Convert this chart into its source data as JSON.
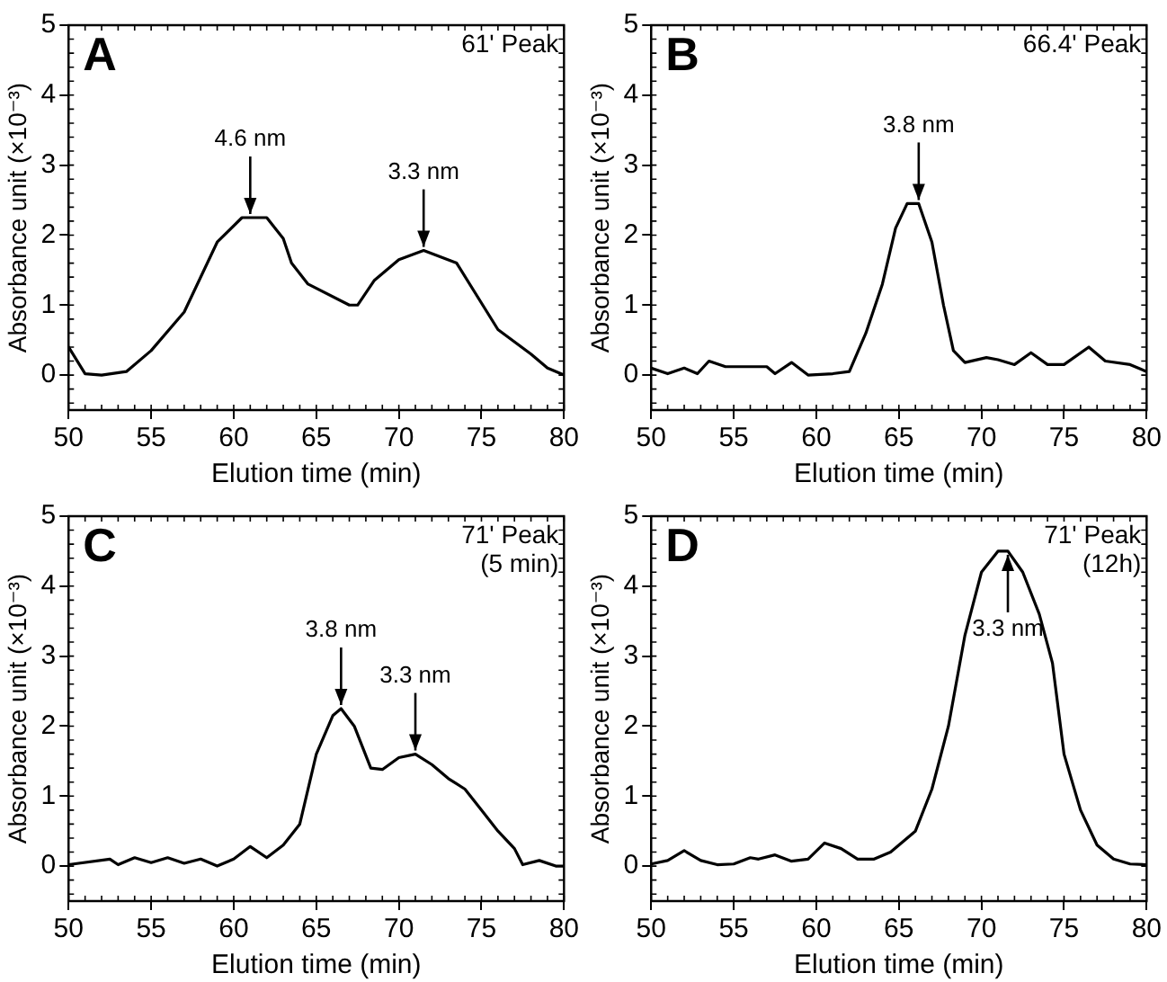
{
  "chart_data": [
    {
      "type": "line",
      "title": "A",
      "xlabel": "Elution time (min)",
      "ylabel": "Absorbance unit (×10⁻³)",
      "xlim": [
        50,
        80
      ],
      "ylim": [
        -0.5,
        5
      ],
      "xticks": [
        50,
        55,
        60,
        65,
        70,
        75,
        80
      ],
      "yticks": [
        0,
        1,
        2,
        3,
        4,
        5
      ],
      "grid": false,
      "legend": false,
      "marker": "none",
      "series": [
        {
          "color": "#000000",
          "x": [
            50,
            51,
            52,
            53.5,
            55,
            57,
            59,
            60.5,
            62,
            63,
            63.5,
            64.5,
            67,
            67.5,
            68.5,
            70,
            71.5,
            73.5,
            76,
            78,
            79,
            80
          ],
          "values": [
            0.4,
            0.02,
            0,
            0.05,
            0.35,
            0.9,
            1.9,
            2.25,
            2.25,
            1.95,
            1.6,
            1.3,
            1.0,
            1.0,
            1.35,
            1.65,
            1.78,
            1.6,
            0.65,
            0.3,
            0.1,
            0.0
          ]
        }
      ],
      "annotations": [
        "61' Peak",
        {
          "text": "4.6 nm",
          "x": 61,
          "y": 2.25
        },
        {
          "text": "3.3 nm",
          "x": 71.5,
          "y": 1.78
        }
      ]
    },
    {
      "type": "line",
      "title": "B",
      "xlabel": "Elution time (min)",
      "ylabel": "Absorbance unit (×10⁻³)",
      "xlim": [
        50,
        80
      ],
      "ylim": [
        -0.5,
        5
      ],
      "xticks": [
        50,
        55,
        60,
        65,
        70,
        75,
        80
      ],
      "yticks": [
        0,
        1,
        2,
        3,
        4,
        5
      ],
      "grid": false,
      "legend": false,
      "marker": "none",
      "series": [
        {
          "color": "#000000",
          "x": [
            50,
            51,
            52,
            52.8,
            53.5,
            54.5,
            56,
            57,
            57.5,
            58.5,
            59.5,
            61,
            62,
            63,
            64,
            64.8,
            65.5,
            66.2,
            67,
            67.7,
            68.3,
            69,
            70.3,
            71,
            72,
            73,
            74,
            75,
            76.5,
            77.5,
            79,
            80
          ],
          "values": [
            0.1,
            0.02,
            0.1,
            0.02,
            0.2,
            0.12,
            0.12,
            0.12,
            0.02,
            0.18,
            0.0,
            0.02,
            0.05,
            0.6,
            1.3,
            2.1,
            2.45,
            2.45,
            1.9,
            1.0,
            0.35,
            0.18,
            0.25,
            0.22,
            0.15,
            0.32,
            0.15,
            0.15,
            0.4,
            0.2,
            0.15,
            0.05
          ]
        }
      ],
      "annotations": [
        "66.4' Peak",
        {
          "text": "3.8 nm",
          "x": 66.2,
          "y": 2.45
        }
      ]
    },
    {
      "type": "line",
      "title": "C",
      "xlabel": "Elution time (min)",
      "ylabel": "Absorbance unit (×10⁻³)",
      "xlim": [
        50,
        80
      ],
      "ylim": [
        -0.5,
        5
      ],
      "xticks": [
        50,
        55,
        60,
        65,
        70,
        75,
        80
      ],
      "yticks": [
        0,
        1,
        2,
        3,
        4,
        5
      ],
      "grid": false,
      "legend": false,
      "marker": "none",
      "series": [
        {
          "color": "#000000",
          "x": [
            50,
            52.5,
            53,
            54,
            55,
            56,
            57,
            58,
            59,
            60,
            61,
            62,
            63,
            64,
            65,
            66,
            66.5,
            67.3,
            68.3,
            69,
            70,
            71,
            72,
            73,
            74,
            75,
            76,
            77,
            77.5,
            78.5,
            79.5,
            80
          ],
          "values": [
            0.02,
            0.1,
            0.02,
            0.12,
            0.05,
            0.12,
            0.04,
            0.1,
            0.0,
            0.1,
            0.28,
            0.12,
            0.3,
            0.6,
            1.6,
            2.15,
            2.25,
            2.0,
            1.4,
            1.38,
            1.55,
            1.6,
            1.45,
            1.25,
            1.1,
            0.8,
            0.5,
            0.25,
            0.02,
            0.08,
            0.0,
            0.0
          ]
        }
      ],
      "annotations": [
        "71' Peak",
        "(5 min)",
        {
          "text": "3.8 nm",
          "x": 66.5,
          "y": 2.25
        },
        {
          "text": "3.3 nm",
          "x": 71,
          "y": 1.6
        }
      ]
    },
    {
      "type": "line",
      "title": "D",
      "xlabel": "Elution time (min)",
      "ylabel": "Absorbance unit (×10⁻³)",
      "xlim": [
        50,
        80
      ],
      "ylim": [
        -0.5,
        5
      ],
      "xticks": [
        50,
        55,
        60,
        65,
        70,
        75,
        80
      ],
      "yticks": [
        0,
        1,
        2,
        3,
        4,
        5
      ],
      "grid": false,
      "legend": false,
      "marker": "none",
      "series": [
        {
          "color": "#000000",
          "x": [
            50,
            51,
            52,
            53,
            54,
            55,
            56,
            56.5,
            57.5,
            58.5,
            59.5,
            60.5,
            61.5,
            62.5,
            63.5,
            64.5,
            66,
            67,
            68,
            69,
            70,
            71,
            71.6,
            72.5,
            73.5,
            74.3,
            75,
            76,
            77,
            78,
            79,
            80
          ],
          "values": [
            0.03,
            0.08,
            0.22,
            0.08,
            0.02,
            0.03,
            0.12,
            0.1,
            0.16,
            0.07,
            0.1,
            0.33,
            0.25,
            0.1,
            0.1,
            0.2,
            0.5,
            1.1,
            2.0,
            3.3,
            4.2,
            4.5,
            4.5,
            4.2,
            3.6,
            2.9,
            1.6,
            0.8,
            0.3,
            0.1,
            0.03,
            0.02
          ]
        }
      ],
      "annotations": [
        "71' Peak",
        "(12h)",
        {
          "text": "3.3 nm",
          "x": 71.6,
          "y": 4.5
        }
      ]
    }
  ]
}
